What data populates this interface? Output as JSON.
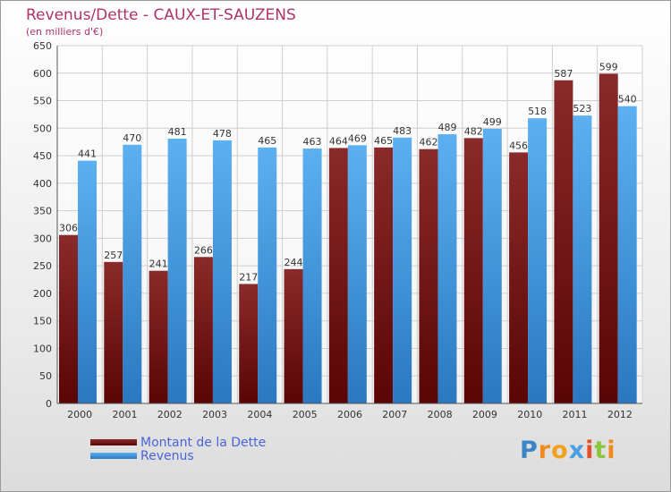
{
  "chart_data": {
    "type": "bar",
    "title": "Revenus/Dette - CAUX-ET-SAUZENS",
    "subtitle": "(en milliers d'€)",
    "categories": [
      "2000",
      "2001",
      "2002",
      "2003",
      "2004",
      "2005",
      "2006",
      "2007",
      "2008",
      "2009",
      "2010",
      "2011",
      "2012"
    ],
    "series": [
      {
        "name": "Montant de la Dette",
        "color": "#7a1a1a",
        "values": [
          306,
          257,
          241,
          266,
          217,
          244,
          464,
          465,
          462,
          482,
          456,
          587,
          599
        ]
      },
      {
        "name": "Revenus",
        "color": "#4ea3e6",
        "values": [
          441,
          470,
          481,
          478,
          465,
          463,
          469,
          483,
          489,
          499,
          518,
          523,
          540
        ]
      }
    ],
    "ylim": [
      0,
      650
    ],
    "yticks": [
      0,
      50,
      100,
      150,
      200,
      250,
      300,
      350,
      400,
      450,
      500,
      550,
      600,
      650
    ],
    "grid": true,
    "legend": "bottom-left"
  },
  "logo": {
    "text": "Proxiti",
    "letters": [
      {
        "ch": "P",
        "color": "#3a86c8"
      },
      {
        "ch": "r",
        "color": "#f08a1c"
      },
      {
        "ch": "o",
        "color": "#f0a21c"
      },
      {
        "ch": "x",
        "color": "#4aa0e0"
      },
      {
        "ch": "i",
        "color": "#e3502a"
      },
      {
        "ch": "t",
        "color": "#8cc63e"
      },
      {
        "ch": "i",
        "color": "#f08a1c"
      }
    ]
  }
}
